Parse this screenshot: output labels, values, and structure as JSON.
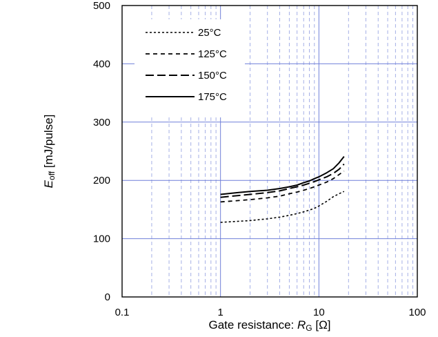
{
  "chart_data": {
    "type": "line",
    "title": "",
    "xlabel": {
      "main": "Gate resistance: ",
      "var": "R",
      "sub": "G",
      "unit": " [Ω]"
    },
    "ylabel": {
      "var": "E",
      "sub": "off",
      "unit": " [mJ/pulse]"
    },
    "xscale": "log",
    "xlim": [
      0.1,
      100
    ],
    "ylim": [
      0,
      500
    ],
    "x_ticks": [
      0.1,
      1,
      10,
      100
    ],
    "x_tick_labels": [
      "0.1",
      "1",
      "10",
      "100"
    ],
    "y_ticks": [
      0,
      100,
      200,
      300,
      400,
      500
    ],
    "y_tick_labels": [
      "0",
      "100",
      "200",
      "300",
      "400",
      "500"
    ],
    "grid": true,
    "grid_color": "#6f7fd9",
    "minor_grid_color": "#9aa6e3",
    "legend_placement": "top-left",
    "series": [
      {
        "name": "25°C",
        "dash": "3,3",
        "width": 1.6,
        "x": [
          1,
          2,
          3,
          4,
          5,
          6,
          7,
          8,
          9,
          10,
          12,
          14,
          16,
          18
        ],
        "y": [
          128,
          131,
          134,
          137,
          140,
          143,
          146,
          149,
          152,
          156,
          164,
          172,
          177,
          181
        ]
      },
      {
        "name": "125°C",
        "dash": "6,5",
        "width": 1.8,
        "x": [
          1,
          2,
          3,
          4,
          5,
          6,
          7,
          8,
          9,
          10,
          12,
          14,
          16,
          18
        ],
        "y": [
          163,
          167,
          170,
          173,
          177,
          180,
          183,
          186,
          189,
          192,
          197,
          203,
          210,
          216
        ]
      },
      {
        "name": "150°C",
        "dash": "12,5",
        "width": 2,
        "x": [
          1,
          2,
          3,
          4,
          5,
          6,
          7,
          8,
          9,
          10,
          12,
          14,
          16,
          18
        ],
        "y": [
          171,
          176,
          179,
          182,
          186,
          189,
          192,
          195,
          198,
          201,
          206,
          212,
          219,
          228
        ]
      },
      {
        "name": "175°C",
        "dash": "",
        "width": 2,
        "x": [
          1,
          1.5,
          2,
          3,
          4,
          5,
          6,
          7,
          8,
          9,
          10,
          12,
          14,
          16,
          18
        ],
        "y": [
          176,
          179,
          181,
          183,
          186,
          189,
          192,
          196,
          199,
          203,
          206,
          213,
          220,
          230,
          241
        ]
      }
    ]
  }
}
